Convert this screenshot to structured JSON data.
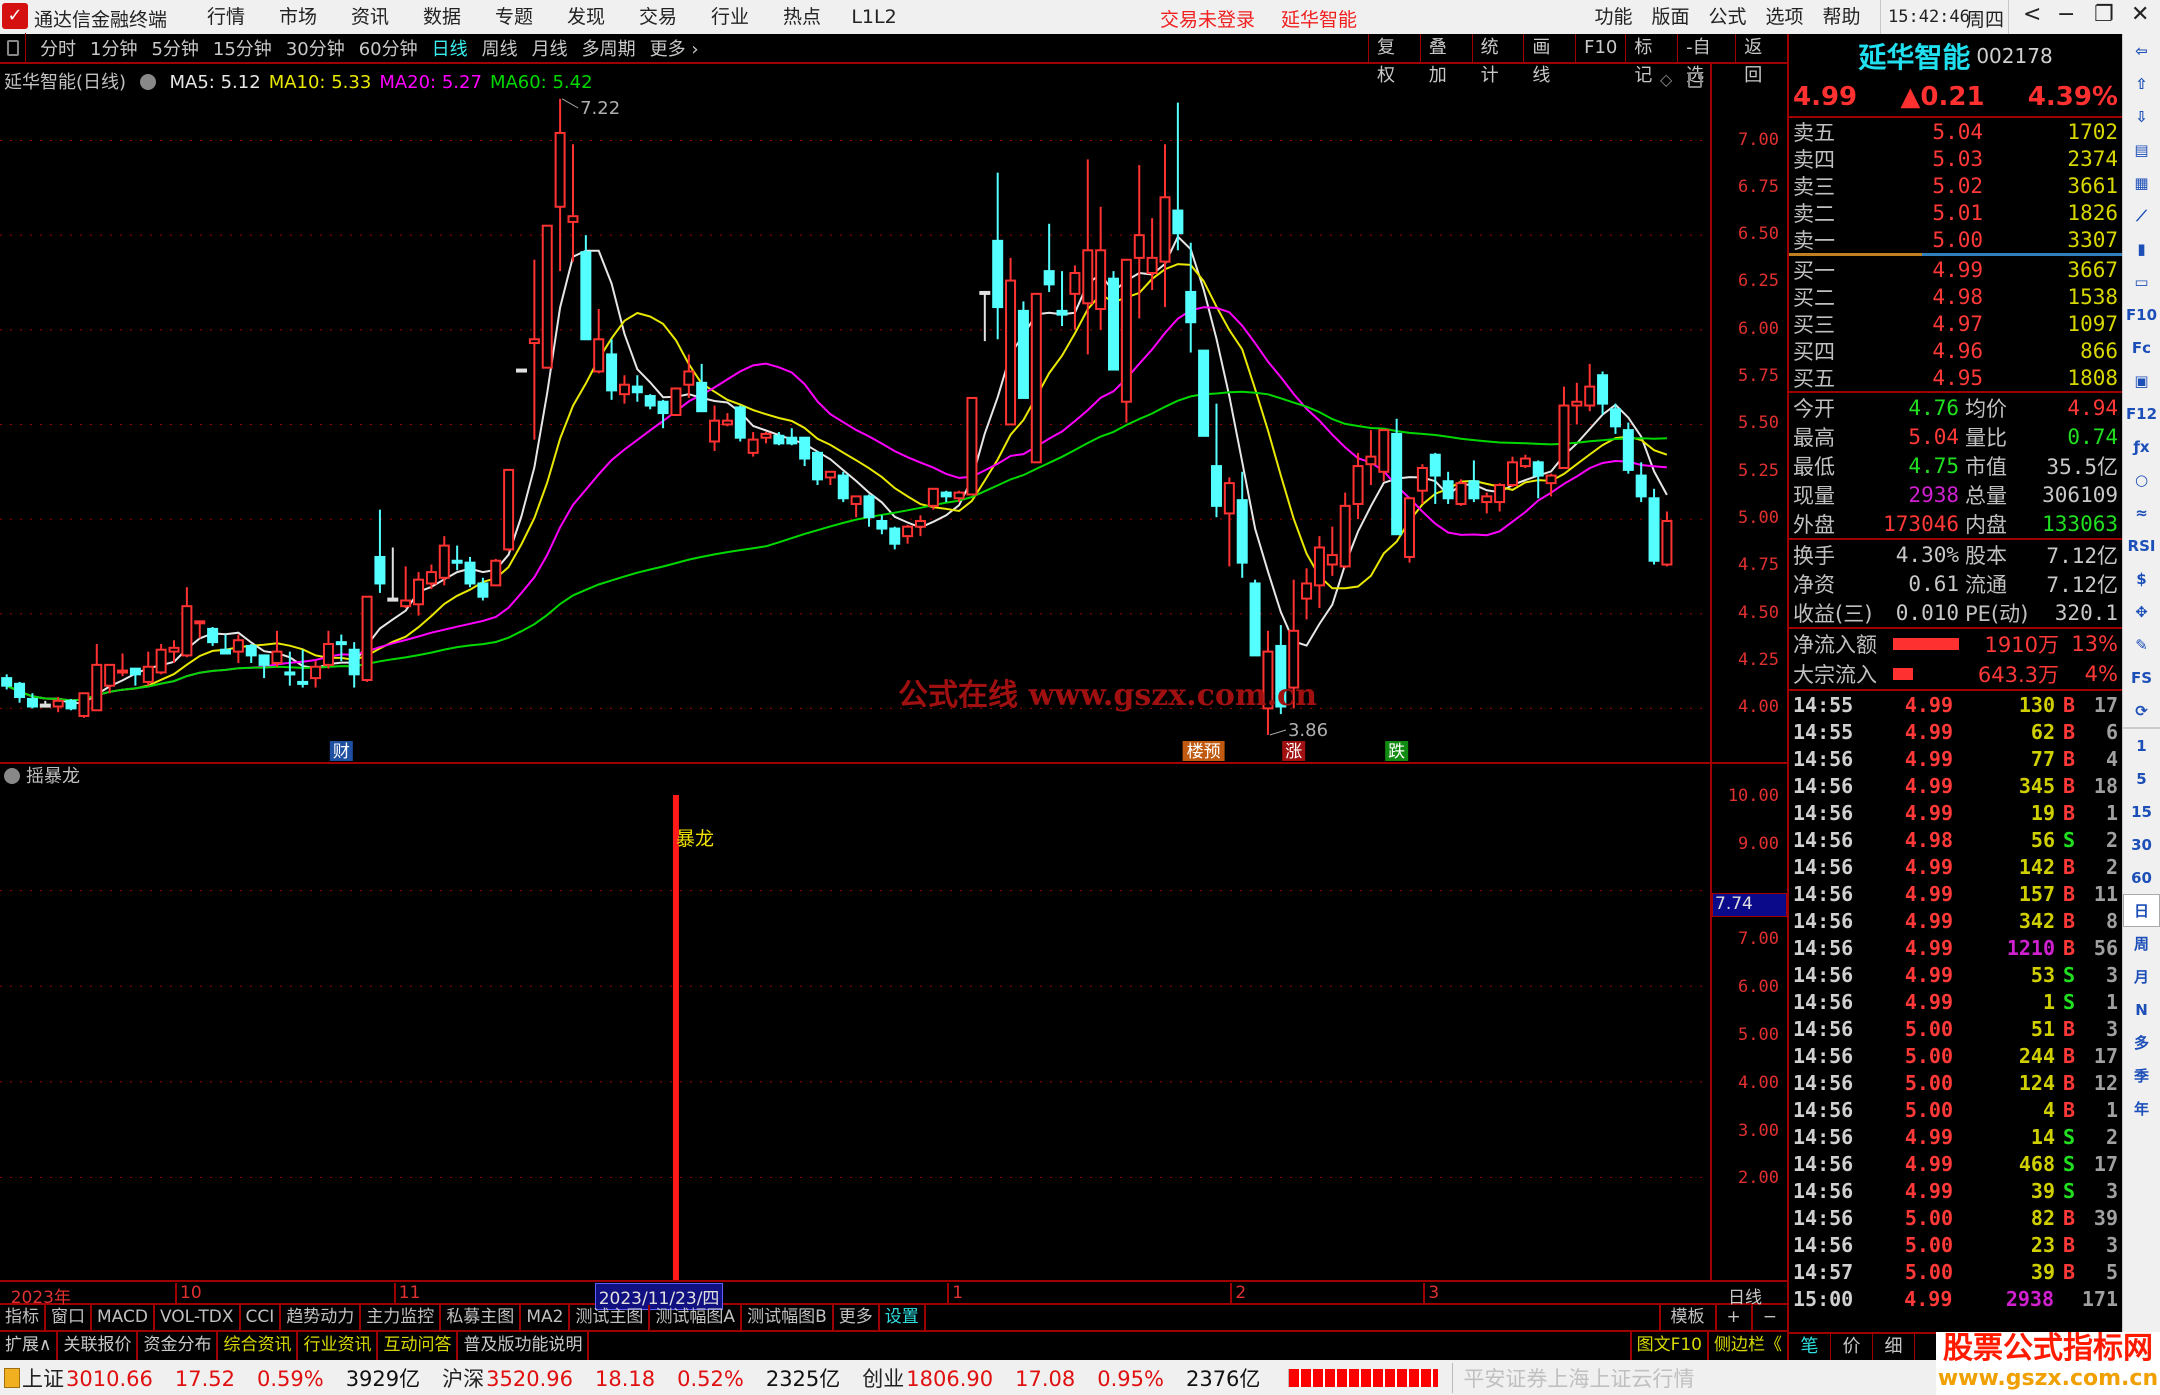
{
  "app": {
    "title": "通达信金融终端",
    "menu": [
      "行情",
      "市场",
      "资讯",
      "数据",
      "专题",
      "发现",
      "交易",
      "行业",
      "热点",
      "L1L2"
    ],
    "notice": "交易未登录",
    "stock_link": "延华智能",
    "right_menu": [
      "功能",
      "版面",
      "公式",
      "选项",
      "帮助"
    ],
    "time": "15:42:46",
    "weekday": "周四",
    "window_controls": [
      "<",
      "−",
      "❐",
      "✕"
    ]
  },
  "toolbar": {
    "periods": [
      "分时",
      "1分钟",
      "5分钟",
      "15分钟",
      "30分钟",
      "60分钟",
      "日线",
      "周线",
      "月线",
      "多周期",
      "更多 ›"
    ],
    "active_period": "日线",
    "buttons": [
      "复权",
      "叠加",
      "统计",
      "画线",
      "F10",
      "标记",
      "-自选",
      "返回"
    ]
  },
  "chart": {
    "title": "延华智能(日线)",
    "ma": [
      {
        "label": "MA5: 5.12",
        "period": 5,
        "color": "#e6e6e6"
      },
      {
        "label": "MA10: 5.33",
        "period": 10,
        "color": "#e8e800"
      },
      {
        "label": "MA20: 5.27",
        "period": 20,
        "color": "#ff00ff"
      },
      {
        "label": "MA60: 5.42",
        "period": 60,
        "color": "#00d800"
      }
    ],
    "high_label": "7.22",
    "high_index": 44,
    "low_label": "3.86",
    "low_index": 99,
    "y_ticks": [
      "7.00",
      "6.75",
      "6.50",
      "6.25",
      "6.00",
      "5.75",
      "5.50",
      "5.25",
      "5.00",
      "4.75",
      "4.50",
      "4.25",
      "4.00"
    ],
    "up_color": "#ff3232",
    "down_color": "#54ffff",
    "markers": [
      {
        "text": "财",
        "index": 27,
        "color": "#1f4fa0"
      },
      {
        "text": "楼预",
        "index": 94,
        "color": "#c05a10"
      },
      {
        "text": "涨",
        "index": 101,
        "color": "#a01010"
      },
      {
        "text": "跌",
        "index": 109,
        "color": "#108a10"
      }
    ],
    "watermark": "公式在线  www.gszx.com.cn",
    "ohlc": [
      [
        4.16,
        4.18,
        4.1,
        4.12
      ],
      [
        4.13,
        4.14,
        4.03,
        4.06
      ],
      [
        4.05,
        4.08,
        4.0,
        4.01
      ],
      [
        4.02,
        4.04,
        4.01,
        4.02
      ],
      [
        4.01,
        4.06,
        3.98,
        4.04
      ],
      [
        4.04,
        4.05,
        3.99,
        4.0
      ],
      [
        3.96,
        4.08,
        3.95,
        4.08
      ],
      [
        3.99,
        4.34,
        3.99,
        4.23
      ],
      [
        4.12,
        4.23,
        4.08,
        4.23
      ],
      [
        4.19,
        4.29,
        4.17,
        4.2
      ],
      [
        4.21,
        4.21,
        4.12,
        4.18
      ],
      [
        4.14,
        4.3,
        4.12,
        4.22
      ],
      [
        4.19,
        4.34,
        4.18,
        4.31
      ],
      [
        4.3,
        4.36,
        4.24,
        4.32
      ],
      [
        4.28,
        4.64,
        4.27,
        4.54
      ],
      [
        4.45,
        4.46,
        4.37,
        4.46
      ],
      [
        4.42,
        4.43,
        4.33,
        4.35
      ],
      [
        4.31,
        4.39,
        4.29,
        4.29
      ],
      [
        4.3,
        4.39,
        4.24,
        4.36
      ],
      [
        4.33,
        4.34,
        4.24,
        4.28
      ],
      [
        4.28,
        4.28,
        4.16,
        4.23
      ],
      [
        4.24,
        4.41,
        4.22,
        4.3
      ],
      [
        4.19,
        4.3,
        4.12,
        4.18
      ],
      [
        4.14,
        4.31,
        4.11,
        4.13
      ],
      [
        4.16,
        4.25,
        4.11,
        4.22
      ],
      [
        4.23,
        4.41,
        4.21,
        4.34
      ],
      [
        4.35,
        4.39,
        4.25,
        4.34
      ],
      [
        4.31,
        4.35,
        4.11,
        4.18
      ],
      [
        4.15,
        4.59,
        4.14,
        4.59
      ],
      [
        4.8,
        5.05,
        4.61,
        4.66
      ],
      [
        4.58,
        4.85,
        4.57,
        4.58
      ],
      [
        4.54,
        4.75,
        4.53,
        4.57
      ],
      [
        4.55,
        4.72,
        4.49,
        4.68
      ],
      [
        4.66,
        4.76,
        4.63,
        4.72
      ],
      [
        4.69,
        4.91,
        4.65,
        4.86
      ],
      [
        4.78,
        4.86,
        4.73,
        4.77
      ],
      [
        4.77,
        4.8,
        4.64,
        4.66
      ],
      [
        4.66,
        4.69,
        4.57,
        4.59
      ],
      [
        4.65,
        4.79,
        4.65,
        4.78
      ],
      [
        4.84,
        5.26,
        4.83,
        5.26
      ],
      [
        5.79,
        5.79,
        5.79,
        5.79
      ],
      [
        5.93,
        6.37,
        5.42,
        5.95
      ],
      [
        5.8,
        6.55,
        5.8,
        6.55
      ],
      [
        6.65,
        7.22,
        6.31,
        7.04
      ],
      [
        6.57,
        6.98,
        6.36,
        6.6
      ],
      [
        6.41,
        6.5,
        5.95,
        5.95
      ],
      [
        5.78,
        6.11,
        5.77,
        5.95
      ],
      [
        5.87,
        5.95,
        5.63,
        5.68
      ],
      [
        5.66,
        5.76,
        5.61,
        5.71
      ],
      [
        5.7,
        5.76,
        5.62,
        5.67
      ],
      [
        5.65,
        5.66,
        5.58,
        5.6
      ],
      [
        5.62,
        5.63,
        5.48,
        5.56
      ],
      [
        5.55,
        5.69,
        5.55,
        5.69
      ],
      [
        5.71,
        5.87,
        5.64,
        5.78
      ],
      [
        5.72,
        5.82,
        5.57,
        5.57
      ],
      [
        5.41,
        5.6,
        5.36,
        5.52
      ],
      [
        5.5,
        5.56,
        5.49,
        5.52
      ],
      [
        5.59,
        5.6,
        5.41,
        5.43
      ],
      [
        5.35,
        5.46,
        5.33,
        5.42
      ],
      [
        5.43,
        5.46,
        5.4,
        5.45
      ],
      [
        5.44,
        5.46,
        5.39,
        5.4
      ],
      [
        5.43,
        5.48,
        5.39,
        5.4
      ],
      [
        5.43,
        5.43,
        5.28,
        5.32
      ],
      [
        5.35,
        5.36,
        5.18,
        5.21
      ],
      [
        5.22,
        5.25,
        5.18,
        5.25
      ],
      [
        5.23,
        5.25,
        5.09,
        5.11
      ],
      [
        5.08,
        5.12,
        5.01,
        5.12
      ],
      [
        5.12,
        5.13,
        4.96,
        5.01
      ],
      [
        4.99,
        5.02,
        4.92,
        4.95
      ],
      [
        4.95,
        4.96,
        4.84,
        4.87
      ],
      [
        4.91,
        4.97,
        4.87,
        4.96
      ],
      [
        4.96,
        5.02,
        4.91,
        4.99
      ],
      [
        5.07,
        5.16,
        5.05,
        5.16
      ],
      [
        5.14,
        5.15,
        5.09,
        5.12
      ],
      [
        5.11,
        5.15,
        5.09,
        5.14
      ],
      [
        5.13,
        5.64,
        5.13,
        5.64
      ],
      [
        6.2,
        6.2,
        5.94,
        6.2
      ],
      [
        6.47,
        6.83,
        5.95,
        6.12
      ],
      [
        5.5,
        6.38,
        5.5,
        6.26
      ],
      [
        6.1,
        6.15,
        5.64,
        5.64
      ],
      [
        5.3,
        6.19,
        5.3,
        6.19
      ],
      [
        6.31,
        6.56,
        6.2,
        6.24
      ],
      [
        6.1,
        6.31,
        6.02,
        6.08
      ],
      [
        6.19,
        6.34,
        6.0,
        6.3
      ],
      [
        6.14,
        6.9,
        5.87,
        6.42
      ],
      [
        6.11,
        6.65,
        6.0,
        6.42
      ],
      [
        6.27,
        6.31,
        5.79,
        5.79
      ],
      [
        5.62,
        6.37,
        5.51,
        6.37
      ],
      [
        6.38,
        6.87,
        6.06,
        6.5
      ],
      [
        6.3,
        6.59,
        6.21,
        6.38
      ],
      [
        6.36,
        6.98,
        6.12,
        6.7
      ],
      [
        6.63,
        7.2,
        6.42,
        6.51
      ],
      [
        6.2,
        6.46,
        5.88,
        6.04
      ],
      [
        5.89,
        5.89,
        5.44,
        5.44
      ],
      [
        5.28,
        5.61,
        5.01,
        5.07
      ],
      [
        5.03,
        5.22,
        4.75,
        5.19
      ],
      [
        5.1,
        5.25,
        4.69,
        4.77
      ],
      [
        4.66,
        4.68,
        4.28,
        4.28
      ],
      [
        4.0,
        4.41,
        3.86,
        4.3
      ],
      [
        4.33,
        4.44,
        3.97,
        4.01
      ],
      [
        4.11,
        4.68,
        4.0,
        4.41
      ],
      [
        4.58,
        4.74,
        4.47,
        4.66
      ],
      [
        4.65,
        4.91,
        4.53,
        4.85
      ],
      [
        4.76,
        4.96,
        4.7,
        4.81
      ],
      [
        4.75,
        5.14,
        4.74,
        5.07
      ],
      [
        5.08,
        5.35,
        5.0,
        5.28
      ],
      [
        5.29,
        5.47,
        5.18,
        5.33
      ],
      [
        5.25,
        5.47,
        5.2,
        5.47
      ],
      [
        5.45,
        5.53,
        4.92,
        4.92
      ],
      [
        4.8,
        5.11,
        4.77,
        5.11
      ],
      [
        5.15,
        5.29,
        5.08,
        5.27
      ],
      [
        5.34,
        5.35,
        5.08,
        5.23
      ],
      [
        5.2,
        5.25,
        5.08,
        5.11
      ],
      [
        5.08,
        5.21,
        5.07,
        5.19
      ],
      [
        5.2,
        5.31,
        5.09,
        5.11
      ],
      [
        5.09,
        5.14,
        5.03,
        5.12
      ],
      [
        5.09,
        5.19,
        5.04,
        5.18
      ],
      [
        5.18,
        5.33,
        5.17,
        5.3
      ],
      [
        5.28,
        5.34,
        5.27,
        5.32
      ],
      [
        5.3,
        5.31,
        5.11,
        5.23
      ],
      [
        5.19,
        5.24,
        5.12,
        5.23
      ],
      [
        5.27,
        5.7,
        5.27,
        5.6
      ],
      [
        5.6,
        5.72,
        5.5,
        5.62
      ],
      [
        5.6,
        5.82,
        5.57,
        5.7
      ],
      [
        5.76,
        5.78,
        5.55,
        5.61
      ],
      [
        5.58,
        5.61,
        5.45,
        5.49
      ],
      [
        5.47,
        5.51,
        5.24,
        5.26
      ],
      [
        5.23,
        5.3,
        5.09,
        5.12
      ],
      [
        5.11,
        5.16,
        4.76,
        4.78
      ],
      [
        4.76,
        5.04,
        4.75,
        4.99
      ]
    ]
  },
  "indicator": {
    "name": "摇暴龙",
    "signal_label": "暴龙",
    "signal_index": 53,
    "signal_value": 10,
    "y_ticks": [
      "10.00",
      "9.00",
      "7.00",
      "6.00",
      "5.00",
      "4.00",
      "3.00",
      "2.00"
    ],
    "cursor_value": "7.74"
  },
  "date_axis": {
    "labels": [
      {
        "text": "2023年",
        "index": 1
      },
      {
        "text": "10",
        "index": 14
      },
      {
        "text": "11",
        "index": 31
      },
      {
        "text": "1",
        "index": 74
      },
      {
        "text": "2",
        "index": 96
      },
      {
        "text": "3",
        "index": 111
      }
    ],
    "cursor_date": "2023/11/23/四",
    "cursor_index": 47,
    "period": "日线"
  },
  "indicator_tabs": [
    "指标",
    "窗口",
    "MACD",
    "VOL-TDX",
    "CCI",
    "趋势动力",
    "主力监控",
    "私募主图",
    "MA2",
    "测试主图",
    "测试幅图A",
    "测试幅图B",
    "更多",
    "设置"
  ],
  "template_buttons": [
    "模板",
    "+",
    "−"
  ],
  "ext_tabs": [
    {
      "label": "扩展∧",
      "color": "#c8c8c8"
    },
    {
      "label": "关联报价",
      "color": "#c8c8c8"
    },
    {
      "label": "资金分布",
      "color": "#c8c8c8"
    },
    {
      "label": "综合资讯",
      "color": "#d8d800"
    },
    {
      "label": "行业资讯",
      "color": "#d8d800"
    },
    {
      "label": "互动问答",
      "color": "#d8d800"
    },
    {
      "label": "普及版功能说明",
      "color": "#c8c8c8"
    }
  ],
  "ext_right": [
    "图文F10",
    "侧边栏《"
  ],
  "detail_tabs": [
    "笔",
    "价",
    "细"
  ],
  "quote": {
    "name": "延华智能",
    "code": "002178",
    "price": "4.99",
    "change": "▲0.21",
    "change_pct": "4.39%",
    "asks": [
      [
        "卖五",
        "5.04",
        "1702"
      ],
      [
        "卖四",
        "5.03",
        "2374"
      ],
      [
        "卖三",
        "5.02",
        "3661"
      ],
      [
        "卖二",
        "5.01",
        "1826"
      ],
      [
        "卖一",
        "5.00",
        "3307"
      ]
    ],
    "bids": [
      [
        "买一",
        "4.99",
        "3667"
      ],
      [
        "买二",
        "4.98",
        "1538"
      ],
      [
        "买三",
        "4.97",
        "1097"
      ],
      [
        "买四",
        "4.96",
        "866"
      ],
      [
        "买五",
        "4.95",
        "1808"
      ]
    ],
    "stats": [
      [
        "今开",
        "4.76",
        "#20e020",
        "均价",
        "4.94",
        "#ff3838"
      ],
      [
        "最高",
        "5.04",
        "#ff3838",
        "量比",
        "0.74",
        "#20e020"
      ],
      [
        "最低",
        "4.75",
        "#20e020",
        "市值",
        "35.5亿",
        "#c8c8c8"
      ],
      [
        "现量",
        "2938",
        "#d020d0",
        "总量",
        "306109",
        "#c8c8c8"
      ],
      [
        "外盘",
        "173046",
        "#ff3838",
        "内盘",
        "133063",
        "#20e020"
      ]
    ],
    "stats2": [
      [
        "换手",
        "4.30%",
        "#c8c8c8",
        "股本",
        "7.12亿",
        "#c8c8c8"
      ],
      [
        "净资",
        "0.61",
        "#c8c8c8",
        "流通",
        "7.12亿",
        "#c8c8c8"
      ],
      [
        "收益(三)",
        "0.010",
        "#c8c8c8",
        "PE(动)",
        "320.1",
        "#c8c8c8"
      ]
    ],
    "flows": [
      {
        "label": "净流入额",
        "bar": 1.0,
        "amount": "1910万",
        "pct": "13%"
      },
      {
        "label": "大宗流入",
        "bar": 0.3,
        "amount": "643.3万",
        "pct": "4%"
      }
    ],
    "trades": [
      [
        "14:55",
        "4.99",
        "130",
        "B",
        "17"
      ],
      [
        "14:55",
        "4.99",
        "62",
        "B",
        "6"
      ],
      [
        "14:56",
        "4.99",
        "77",
        "B",
        "4"
      ],
      [
        "14:56",
        "4.99",
        "345",
        "B",
        "18"
      ],
      [
        "14:56",
        "4.99",
        "19",
        "B",
        "1"
      ],
      [
        "14:56",
        "4.98",
        "56",
        "S",
        "2"
      ],
      [
        "14:56",
        "4.99",
        "142",
        "B",
        "2"
      ],
      [
        "14:56",
        "4.99",
        "157",
        "B",
        "11"
      ],
      [
        "14:56",
        "4.99",
        "342",
        "B",
        "8"
      ],
      [
        "14:56",
        "4.99",
        "1210",
        "B",
        "56"
      ],
      [
        "14:56",
        "4.99",
        "53",
        "S",
        "3"
      ],
      [
        "14:56",
        "4.99",
        "1",
        "S",
        "1"
      ],
      [
        "14:56",
        "5.00",
        "51",
        "B",
        "3"
      ],
      [
        "14:56",
        "5.00",
        "244",
        "B",
        "17"
      ],
      [
        "14:56",
        "5.00",
        "124",
        "B",
        "12"
      ],
      [
        "14:56",
        "5.00",
        "4",
        "B",
        "1"
      ],
      [
        "14:56",
        "4.99",
        "14",
        "S",
        "2"
      ],
      [
        "14:56",
        "4.99",
        "468",
        "S",
        "17"
      ],
      [
        "14:56",
        "4.99",
        "39",
        "S",
        "3"
      ],
      [
        "14:56",
        "5.00",
        "82",
        "B",
        "39"
      ],
      [
        "14:56",
        "5.00",
        "23",
        "B",
        "3"
      ],
      [
        "14:57",
        "5.00",
        "39",
        "B",
        "5"
      ],
      [
        "15:00",
        "4.99",
        "2938",
        "",
        "171"
      ]
    ]
  },
  "sidebar": {
    "icons": [
      "arrow-left",
      "arrow-up",
      "arrow-down",
      "list-chart",
      "table",
      "line-chart",
      "candles",
      "window",
      "F10",
      "F-tabs",
      "home-doc",
      "F12",
      "formula",
      "circle",
      "wave",
      "RSI",
      "money",
      "move",
      "pencil",
      "FS",
      "refresh"
    ],
    "periods": [
      "1",
      "5",
      "15",
      "30",
      "60",
      "日",
      "周",
      "月",
      "N",
      "多",
      "季",
      "年"
    ],
    "active": "日"
  },
  "statusbar": {
    "indices": [
      {
        "name": "上证",
        "value": "3010.66",
        "chg": "17.52",
        "pct": "0.59%",
        "amt": "3929亿"
      },
      {
        "name": "沪深",
        "value": "3520.96",
        "chg": "18.18",
        "pct": "0.52%",
        "amt": "2325亿"
      },
      {
        "name": "创业",
        "value": "1806.90",
        "chg": "17.08",
        "pct": "0.95%",
        "amt": "2376亿"
      }
    ],
    "server": "平安证券上海上证云行情"
  },
  "brand": {
    "name": "股票公式指标网",
    "url": "www.gszx.com.cn"
  }
}
